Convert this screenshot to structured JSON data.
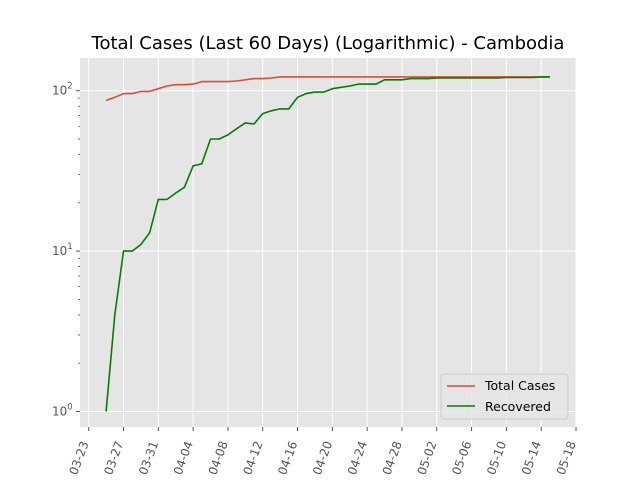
{
  "chart_data": {
    "type": "line",
    "title": "Total Cases (Last 60 Days) (Logarithmic) - Cambodia",
    "xlabel": "",
    "ylabel": "",
    "yscale": "log",
    "ylim": [
      0.8,
      160
    ],
    "xlim": [
      "2020-03-22",
      "2020-05-18"
    ],
    "grid": true,
    "legend_position": "lower-right",
    "x_ticks": [
      "03-23",
      "03-27",
      "03-31",
      "04-04",
      "04-08",
      "04-12",
      "04-16",
      "04-20",
      "04-24",
      "04-28",
      "05-02",
      "05-06",
      "05-10",
      "05-14",
      "05-18"
    ],
    "y_ticks": [
      {
        "value": 1,
        "base": "10",
        "exp": "0"
      },
      {
        "value": 10,
        "base": "10",
        "exp": "1"
      },
      {
        "value": 100,
        "base": "10",
        "exp": "2"
      }
    ],
    "x": [
      "2020-03-25",
      "2020-03-26",
      "2020-03-27",
      "2020-03-28",
      "2020-03-29",
      "2020-03-30",
      "2020-03-31",
      "2020-04-01",
      "2020-04-02",
      "2020-04-03",
      "2020-04-04",
      "2020-04-05",
      "2020-04-06",
      "2020-04-07",
      "2020-04-08",
      "2020-04-09",
      "2020-04-10",
      "2020-04-11",
      "2020-04-12",
      "2020-04-13",
      "2020-04-14",
      "2020-04-15",
      "2020-04-16",
      "2020-04-17",
      "2020-04-18",
      "2020-04-19",
      "2020-04-20",
      "2020-04-21",
      "2020-04-22",
      "2020-04-23",
      "2020-04-24",
      "2020-04-25",
      "2020-04-26",
      "2020-04-27",
      "2020-04-28",
      "2020-04-29",
      "2020-04-30",
      "2020-05-01",
      "2020-05-02",
      "2020-05-03",
      "2020-05-04",
      "2020-05-05",
      "2020-05-06",
      "2020-05-07",
      "2020-05-08",
      "2020-05-09",
      "2020-05-10",
      "2020-05-11",
      "2020-05-12",
      "2020-05-13",
      "2020-05-14",
      "2020-05-15"
    ],
    "series": [
      {
        "name": "Total Cases",
        "color": "#e24a33",
        "values": [
          87,
          91,
          96,
          96,
          99,
          99,
          103,
          107,
          109,
          109,
          110,
          114,
          114,
          114,
          114,
          115,
          117,
          119,
          119,
          120,
          122,
          122,
          122,
          122,
          122,
          122,
          122,
          122,
          122,
          122,
          122,
          122,
          122,
          122,
          122,
          122,
          122,
          122,
          122,
          122,
          122,
          122,
          122,
          122,
          122,
          122,
          122,
          122,
          122,
          122,
          122,
          122
        ]
      },
      {
        "name": "Recovered",
        "color": "#008000",
        "values": [
          1,
          4,
          10,
          10,
          11,
          13,
          21,
          21,
          23,
          25,
          34,
          35,
          50,
          50,
          53,
          58,
          63,
          62,
          72,
          75,
          77,
          77,
          91,
          96,
          98,
          98,
          103,
          105,
          107,
          110,
          110,
          110,
          117,
          117,
          117,
          119,
          119,
          119,
          120,
          120,
          120,
          120,
          120,
          120,
          120,
          120,
          121,
          121,
          121,
          121,
          122,
          122
        ]
      }
    ]
  }
}
